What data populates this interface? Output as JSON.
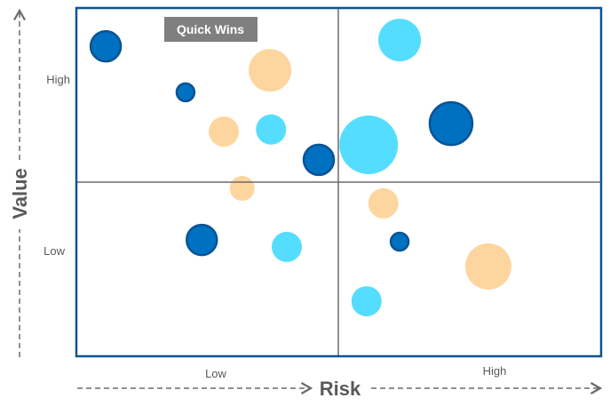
{
  "chart_data": {
    "type": "bubble",
    "title": "",
    "xlabel": "Risk",
    "ylabel": "Value",
    "xlim": [
      0,
      100
    ],
    "ylim": [
      0,
      100
    ],
    "x_tick_labels": [
      {
        "label": "Low",
        "value": 26
      },
      {
        "label": "High",
        "value": 79
      }
    ],
    "y_tick_labels": [
      {
        "label": "High",
        "value": 80
      },
      {
        "label": "Low",
        "value": 30
      }
    ],
    "quadrant_divider": {
      "x": 50,
      "y": 50
    },
    "annotation": "Quick Wins",
    "grid": false,
    "colors": {
      "dark": "#0070C0",
      "dark_stroke": "#0B5394",
      "cyan": "#55DDFF",
      "peach": "#FDD59F",
      "frame": "#0B5394",
      "divider": "#6B6B6B",
      "label_bg": "#7F7F7F"
    },
    "points": [
      {
        "x": 5.6,
        "y": 89,
        "size": 17,
        "color": "dark"
      },
      {
        "x": 36.9,
        "y": 82.1,
        "size": 24,
        "color": "peach"
      },
      {
        "x": 20.8,
        "y": 75.8,
        "size": 10,
        "color": "dark"
      },
      {
        "x": 28.1,
        "y": 64.5,
        "size": 17,
        "color": "peach"
      },
      {
        "x": 37.1,
        "y": 65.1,
        "size": 17,
        "color": "cyan"
      },
      {
        "x": 46.2,
        "y": 56.4,
        "size": 17,
        "color": "dark"
      },
      {
        "x": 31.6,
        "y": 48.2,
        "size": 14,
        "color": "peach"
      },
      {
        "x": 61.6,
        "y": 90.8,
        "size": 24,
        "color": "cyan"
      },
      {
        "x": 55.7,
        "y": 60.7,
        "size": 33,
        "color": "cyan"
      },
      {
        "x": 71.4,
        "y": 66.8,
        "size": 24,
        "color": "dark"
      },
      {
        "x": 58.5,
        "y": 43.9,
        "size": 17,
        "color": "peach"
      },
      {
        "x": 23.9,
        "y": 33.4,
        "size": 17,
        "color": "dark"
      },
      {
        "x": 40.1,
        "y": 31.4,
        "size": 17,
        "color": "cyan"
      },
      {
        "x": 61.6,
        "y": 32.9,
        "size": 10,
        "color": "dark"
      },
      {
        "x": 78.5,
        "y": 25.8,
        "size": 26,
        "color": "peach"
      },
      {
        "x": 55.3,
        "y": 15.8,
        "size": 17,
        "color": "cyan"
      }
    ]
  }
}
